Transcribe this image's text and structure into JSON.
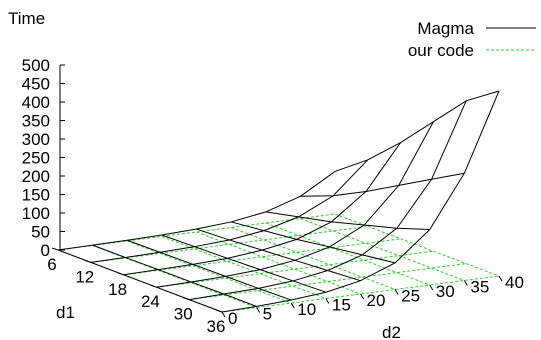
{
  "chart_data": {
    "type": "surface",
    "zlabel": "Time",
    "xlabel": "d2",
    "ylabel": "d1",
    "d1_ticks": [
      6,
      12,
      18,
      24,
      30,
      36
    ],
    "d2_ticks": [
      0,
      5,
      10,
      15,
      20,
      25,
      30,
      35,
      40
    ],
    "z_ticks": [
      0,
      50,
      100,
      150,
      200,
      250,
      300,
      350,
      400,
      450,
      500
    ],
    "d2_range": [
      0,
      40
    ],
    "d1_range": [
      6,
      36
    ],
    "z_range": [
      0,
      500
    ],
    "grid": false,
    "legend_position": "top-right",
    "series": [
      {
        "name": "Magma",
        "color": "#000000",
        "style": "solid",
        "d1": [
          6,
          12,
          18,
          24,
          30,
          36
        ],
        "d2": [
          0,
          5,
          10,
          15,
          20,
          25,
          30,
          35,
          40
        ],
        "z": [
          [
            0,
            1,
            2,
            4,
            8,
            15,
            30,
            60,
            115
          ],
          [
            0,
            1,
            3,
            6,
            12,
            25,
            50,
            95,
            180
          ],
          [
            0,
            2,
            4,
            8,
            18,
            35,
            70,
            140,
            260
          ],
          [
            0,
            2,
            5,
            11,
            24,
            48,
            95,
            190,
            350
          ],
          [
            0,
            3,
            6,
            14,
            30,
            60,
            120,
            240,
            440
          ],
          [
            0,
            3,
            8,
            17,
            36,
            72,
            150,
            290,
            500
          ]
        ]
      },
      {
        "name": "our code",
        "color": "#33cc33",
        "style": "dashed",
        "d1": [
          6,
          12,
          18,
          24,
          30,
          36
        ],
        "d2": [
          0,
          5,
          10,
          15,
          20,
          25,
          30,
          35,
          40
        ],
        "z": [
          [
            0,
            0,
            0,
            0,
            0,
            0,
            0,
            0,
            0
          ],
          [
            0,
            0,
            0,
            0,
            0,
            0,
            0,
            0,
            0
          ],
          [
            0,
            0,
            0,
            0,
            0,
            0,
            0,
            0,
            0
          ],
          [
            0,
            0,
            0,
            0,
            0,
            0,
            0,
            0,
            0
          ],
          [
            0,
            0,
            0,
            0,
            0,
            0,
            0,
            0,
            0
          ],
          [
            0,
            0,
            0,
            0,
            0,
            0,
            0,
            0,
            0
          ]
        ]
      }
    ]
  }
}
